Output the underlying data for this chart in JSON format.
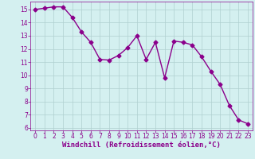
{
  "x": [
    0,
    1,
    2,
    3,
    4,
    5,
    6,
    7,
    8,
    9,
    10,
    11,
    12,
    13,
    14,
    15,
    16,
    17,
    18,
    19,
    20,
    21,
    22,
    23
  ],
  "y": [
    15.0,
    15.1,
    15.2,
    15.2,
    14.4,
    13.3,
    12.5,
    11.2,
    11.15,
    11.5,
    12.1,
    13.0,
    11.2,
    12.5,
    9.8,
    12.6,
    12.5,
    12.3,
    11.4,
    10.3,
    9.3,
    7.7,
    6.6,
    6.3
  ],
  "line_color": "#8B008B",
  "marker": "D",
  "markersize": 2.5,
  "bg_color": "#d4f0f0",
  "grid_color": "#b0d0d0",
  "xlabel": "Windchill (Refroidissement éolien,°C)",
  "xlabel_color": "#8B008B",
  "tick_color": "#8B008B",
  "ylim": [
    5.8,
    15.6
  ],
  "xlim": [
    -0.5,
    23.5
  ],
  "yticks": [
    6,
    7,
    8,
    9,
    10,
    11,
    12,
    13,
    14,
    15
  ],
  "xticks": [
    0,
    1,
    2,
    3,
    4,
    5,
    6,
    7,
    8,
    9,
    10,
    11,
    12,
    13,
    14,
    15,
    16,
    17,
    18,
    19,
    20,
    21,
    22,
    23
  ],
  "tick_fontsize": 5.5,
  "xlabel_fontsize": 6.5
}
